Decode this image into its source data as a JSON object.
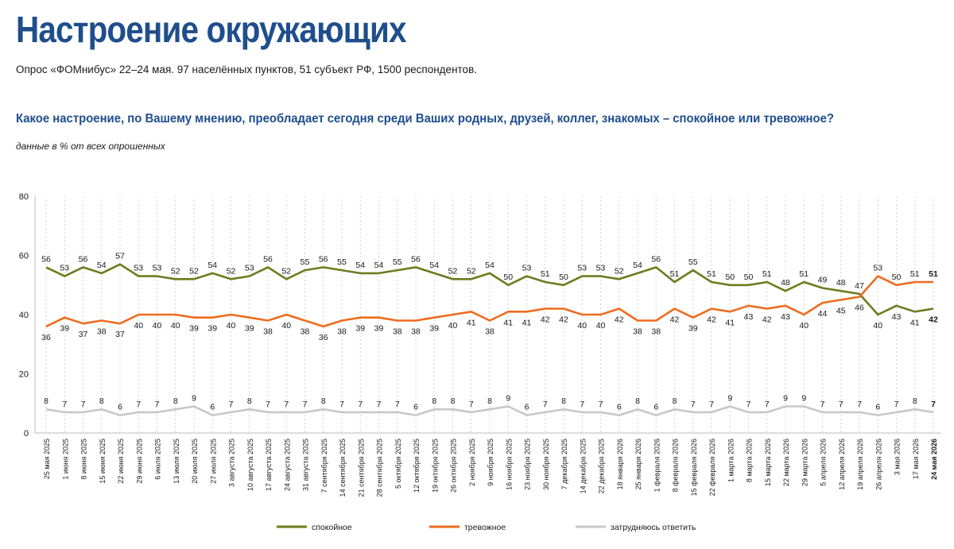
{
  "header": {
    "title": "Настроение окружающих",
    "subtitle": "Опрос «ФОМнибус» 22–24 мая. 97 населённых пунктов, 51 субъект РФ, 1500 респондентов.",
    "question": "Какое настроение, по Вашему мнению, преобладает сегодня среди Ваших родных, друзей, коллег, знакомых – спокойное или тревожное?",
    "note": "данные в % от всех опрошенных"
  },
  "chart_data": {
    "type": "line",
    "ylim": [
      0,
      80
    ],
    "yticks": [
      0,
      20,
      40,
      60,
      80
    ],
    "grid": "vertical dotted",
    "legend_position": "bottom",
    "x": [
      "25 мая 2025",
      "1 июня 2025",
      "8 июня 2025",
      "15 июня 2025",
      "22 июня 2025",
      "29 июня 2025",
      "6 июля 2025",
      "13 июля 2025",
      "20 июля 2025",
      "27 июля 2025",
      "3 августа 2025",
      "10 августа 2025",
      "17 августа 2025",
      "24 августа 2025",
      "31 августа 2025",
      "7 сентября 2025",
      "14 сентября 2025",
      "21 сентября 2025",
      "28 сентября 2025",
      "5 октября 2025",
      "12 октября 2025",
      "19 октября 2025",
      "26 октября 2025",
      "2 ноября 2025",
      "9 ноября 2025",
      "16 ноября 2025",
      "23 ноября 2025",
      "30 ноября 2025",
      "7 декабря 2025",
      "14 декабря 2025",
      "22 декабря 2025",
      "18 января 2026",
      "25 января 2026",
      "1 февраля 2026",
      "8 февраля 2026",
      "15 февраля 2026",
      "22 февраля 2026",
      "1 марта 2026",
      "8 марта 2026",
      "15 марта 2026",
      "22 марта 2026",
      "29 марта 2026",
      "5 апреля 2026",
      "12 апреля 2026",
      "19 апреля 2026",
      "26 апреля 2026",
      "3 мая 2026",
      "17 мая 2026",
      "24 мая 2026"
    ],
    "series": [
      {
        "name": "спокойное",
        "color": "#6b7d1f",
        "values": [
          56,
          53,
          56,
          54,
          57,
          53,
          53,
          52,
          52,
          54,
          52,
          53,
          56,
          52,
          55,
          56,
          55,
          54,
          54,
          55,
          56,
          54,
          52,
          52,
          54,
          50,
          53,
          51,
          50,
          53,
          53,
          52,
          54,
          56,
          51,
          55,
          51,
          50,
          50,
          51,
          48,
          51,
          49,
          48,
          47,
          40,
          43,
          41,
          42
        ]
      },
      {
        "name": "тревожное",
        "color": "#ee6c1f",
        "values": [
          36,
          39,
          37,
          38,
          37,
          40,
          40,
          40,
          39,
          39,
          40,
          39,
          38,
          40,
          38,
          36,
          38,
          39,
          39,
          38,
          38,
          39,
          40,
          41,
          38,
          41,
          41,
          42,
          42,
          40,
          40,
          42,
          38,
          38,
          42,
          39,
          42,
          41,
          43,
          42,
          43,
          40,
          44,
          45,
          46,
          53,
          50,
          51,
          51
        ]
      },
      {
        "name": "затрудняюсь ответить",
        "color": "#c8c8c8",
        "values": [
          8,
          7,
          7,
          8,
          6,
          7,
          7,
          8,
          9,
          6,
          7,
          8,
          7,
          7,
          7,
          8,
          7,
          7,
          7,
          7,
          6,
          8,
          8,
          7,
          8,
          9,
          6,
          7,
          8,
          7,
          7,
          6,
          8,
          6,
          8,
          7,
          7,
          9,
          7,
          7,
          9,
          9,
          7,
          7,
          7,
          6,
          7,
          8,
          7
        ]
      }
    ]
  }
}
